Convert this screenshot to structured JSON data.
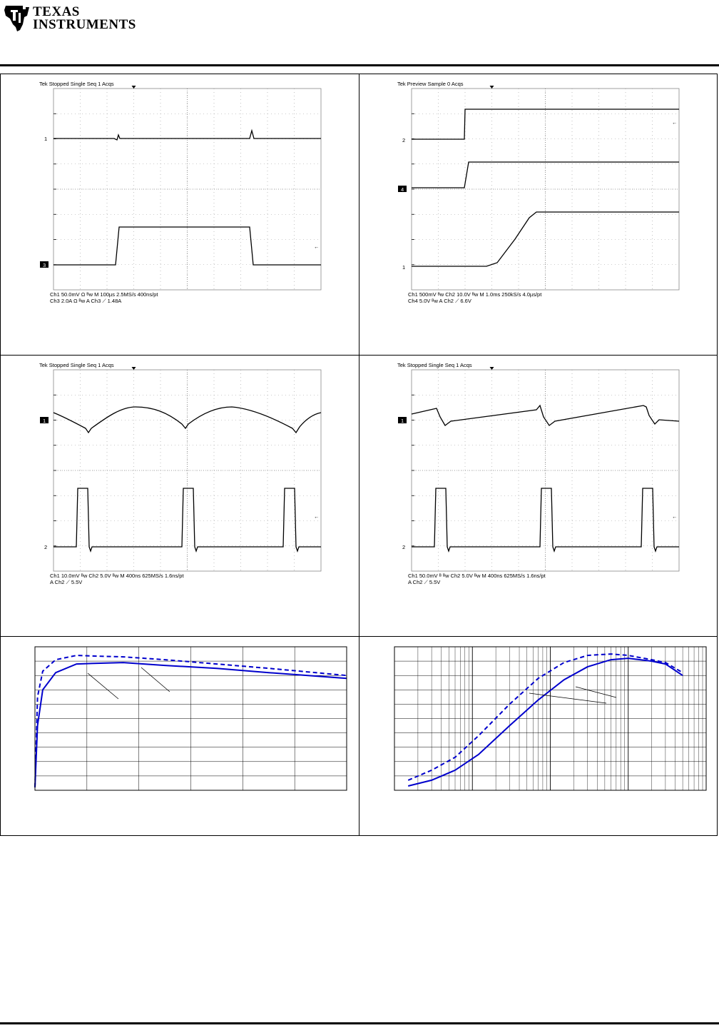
{
  "header": {
    "logo_line1": "TEXAS",
    "logo_line2": "INSTRUMENTS"
  },
  "scopes": [
    {
      "id": "scope1",
      "top": "Tek    Stopped  Single Seq           1 Acqs",
      "bottom1": "Ch1     50.0mV  Ω  ᴮw                                              M 100µs 2.5MS/s        400ns/pt",
      "bottom2": "Ch3     2.0A     Ω  ᴮw                                              A  Ch3  ⟋  1.48A",
      "markers": [
        "1",
        "3"
      ]
    },
    {
      "id": "scope2",
      "top": "Tek    Preview   Sample                  0 Acqs",
      "bottom1": "Ch1     500mV      ᴮw       Ch2     10.0V         ᴮw       M 1.0ms 250kS/s      4.0µs/pt",
      "bottom2": "                                  Ch4     5.0V           ᴮw       A  Ch2  ⟋  6.6V",
      "markers": [
        "2",
        "4",
        "1"
      ]
    },
    {
      "id": "scope3",
      "top": "Tek    Stopped  Single Seq           1 Acqs",
      "bottom1": "Ch1     10.0mV  ᴮw          Ch2     5.0V         ᴮw       M 400ns 625MS/s        1.6ns/pt",
      "bottom2": "                                                                    A  Ch2  ⟋  5.5V",
      "markers": [
        "1",
        "2"
      ]
    },
    {
      "id": "scope4",
      "top": "Tek    Stopped  Single Seq           1 Acqs",
      "bottom1": "Ch1     50.0mV  ᴮ  ᴮw       Ch2     5.0V         ᴮw       M 400ns 625MS/s        1.6ns/pt",
      "bottom2": "                                                                    A  Ch2  ⟋  5.5V",
      "markers": [
        "1",
        "2"
      ]
    }
  ],
  "chart_data": [
    {
      "type": "line",
      "title": "",
      "xlabel": "",
      "ylabel": "",
      "x_scale": "linear",
      "xlim": [
        0,
        6
      ],
      "ylim": [
        0,
        10
      ],
      "series": [
        {
          "style": "solid",
          "color": "#0000cc",
          "x": [
            0,
            0.05,
            0.15,
            0.4,
            0.8,
            1.2,
            1.7,
            2.5,
            3.5,
            4.5,
            6.0
          ],
          "y": [
            0.2,
            4.5,
            7.0,
            8.2,
            8.8,
            8.85,
            8.9,
            8.7,
            8.5,
            8.2,
            7.8
          ]
        },
        {
          "style": "dashed",
          "color": "#0000cc",
          "x": [
            0,
            0.05,
            0.15,
            0.4,
            0.8,
            1.2,
            1.7,
            2.5,
            3.5,
            4.5,
            6.0
          ],
          "y": [
            0.2,
            6.5,
            8.3,
            9.1,
            9.4,
            9.35,
            9.3,
            9.1,
            8.8,
            8.5,
            8.0
          ]
        }
      ]
    },
    {
      "type": "line",
      "title": "",
      "xlabel": "",
      "ylabel": "",
      "x_scale": "log",
      "xlim": [
        0.001,
        10
      ],
      "ylim": [
        0,
        10
      ],
      "series": [
        {
          "style": "solid",
          "color": "#0000cc",
          "x": [
            0.0015,
            0.003,
            0.006,
            0.012,
            0.03,
            0.07,
            0.15,
            0.3,
            0.6,
            1.0,
            2.0,
            3.0,
            5.0
          ],
          "y": [
            0.3,
            0.7,
            1.4,
            2.5,
            4.5,
            6.3,
            7.7,
            8.6,
            9.1,
            9.2,
            9.0,
            8.8,
            8.0
          ]
        },
        {
          "style": "dashed",
          "color": "#0000cc",
          "x": [
            0.0015,
            0.003,
            0.006,
            0.012,
            0.03,
            0.07,
            0.15,
            0.3,
            0.6,
            1.0,
            2.0,
            3.0,
            5.0
          ],
          "y": [
            0.7,
            1.4,
            2.3,
            3.8,
            6.0,
            7.8,
            8.9,
            9.4,
            9.5,
            9.4,
            9.1,
            8.9,
            8.2
          ]
        }
      ]
    }
  ]
}
